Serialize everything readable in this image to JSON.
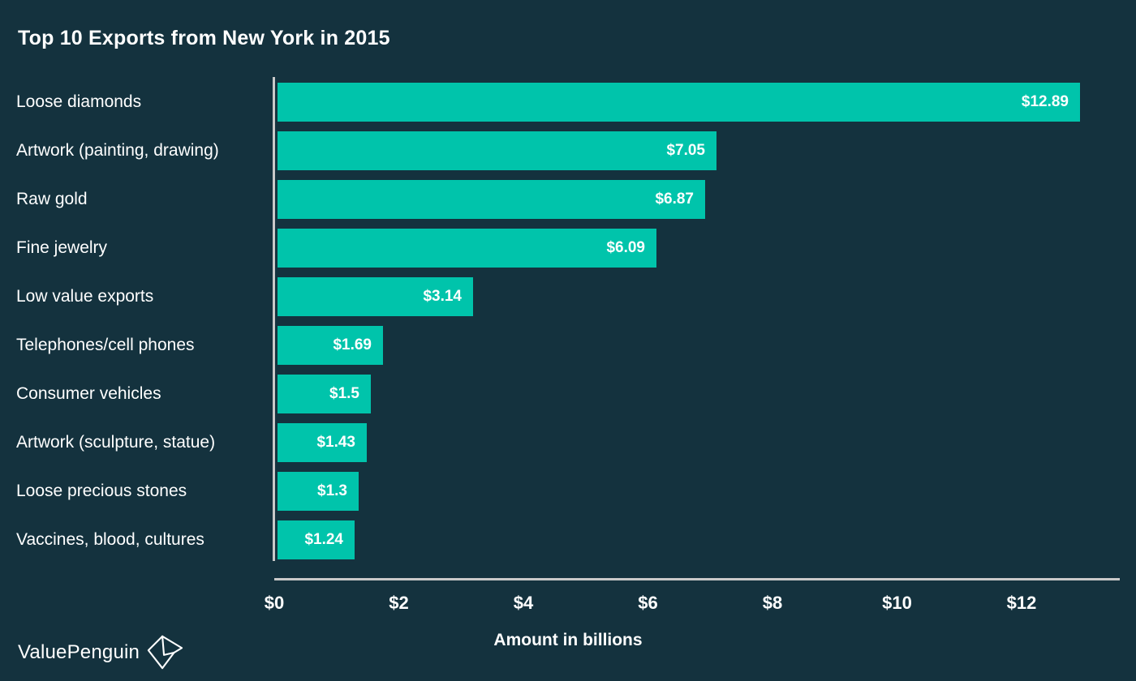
{
  "chart_data": {
    "type": "bar",
    "orientation": "horizontal",
    "title": "Top 10 Exports from New York in 2015",
    "categories": [
      "Loose diamonds",
      "Artwork (painting, drawing)",
      "Raw gold",
      "Fine jewelry",
      "Low value exports",
      "Telephones/cell phones",
      "Consumer vehicles",
      "Artwork (sculpture, statue)",
      "Loose precious stones",
      "Vaccines, blood, cultures"
    ],
    "values": [
      12.89,
      7.05,
      6.87,
      6.09,
      3.14,
      1.69,
      1.5,
      1.43,
      1.3,
      1.24
    ],
    "value_labels": [
      "$12.89",
      "$7.05",
      "$6.87",
      "$6.09",
      "$3.14",
      "$1.69",
      "$1.5",
      "$1.43",
      "$1.3",
      "$1.24"
    ],
    "xlabel": "Amount in billions",
    "x_ticks": {
      "labels": [
        "$0",
        "$2",
        "$4",
        "$6",
        "$8",
        "$10",
        "$12"
      ],
      "values": [
        0,
        2,
        4,
        6,
        8,
        10,
        12
      ]
    },
    "xlim": [
      0,
      13.6
    ],
    "grid": false,
    "legend": null,
    "colors": {
      "background": "#14323E",
      "bar": "#00C4AB",
      "axis": "#C9C9C9",
      "text": "#FFFFFF"
    }
  },
  "branding": {
    "logo_text": "ValuePenguin",
    "logo_icon": "origami-penguin-icon"
  }
}
